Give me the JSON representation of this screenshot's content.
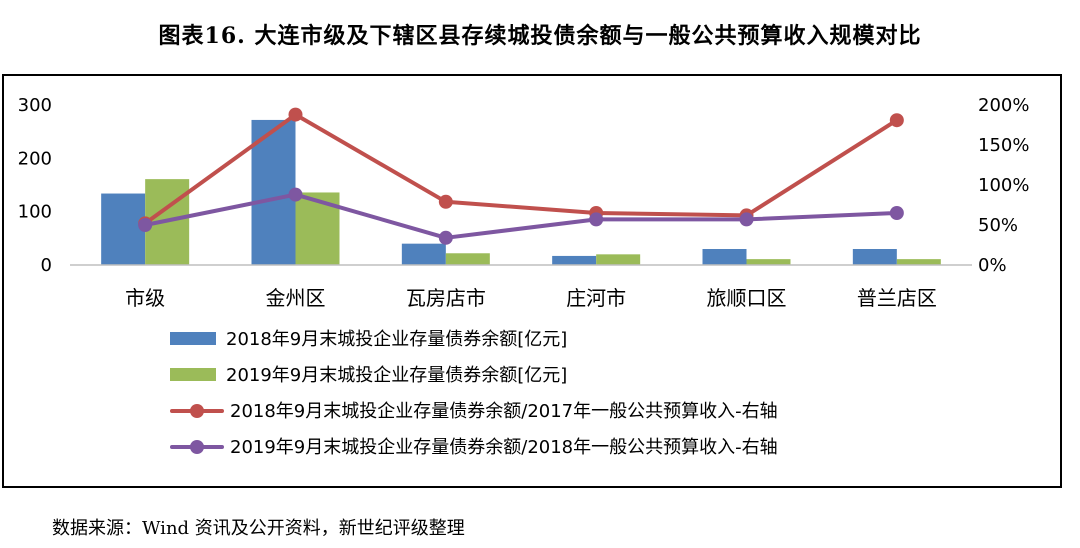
{
  "title": "图表16. 大连市级及下辖区县存续城投债余额与一般公共预算收入规模对比",
  "source": "数据来源：Wind 资讯及公开资料，新世纪评级整理",
  "chart_data": {
    "type": "bar",
    "categories": [
      "市级",
      "金州区",
      "瓦房店市",
      "庄河市",
      "旅顺口区",
      "普兰店区"
    ],
    "y_left": {
      "ticks": [
        "0",
        "100",
        "200",
        "300"
      ],
      "ylim": [
        0,
        300
      ]
    },
    "y_right": {
      "ticks": [
        "0%",
        "50%",
        "100%",
        "150%",
        "200%"
      ],
      "ylim": [
        0,
        200
      ]
    },
    "series": [
      {
        "name": "2018年9月末城投企业存量债券余额[亿元]",
        "kind": "bar",
        "axis": "left",
        "color": "#4f81bd",
        "values": [
          134,
          272,
          40,
          17,
          30,
          30
        ]
      },
      {
        "name": "2019年9月末城投企业存量债券余额[亿元]",
        "kind": "bar",
        "axis": "left",
        "color": "#9bbb59",
        "values": [
          161,
          136,
          22,
          20,
          11,
          11
        ]
      },
      {
        "name": "2018年9月末城投企业存量债券余额/2017年一般公共预算收入-右轴",
        "kind": "line",
        "axis": "right",
        "color": "#c0504d",
        "values": [
          52,
          188,
          79,
          65,
          62,
          181
        ]
      },
      {
        "name": "2019年9月末城投企业存量债券余额/2018年一般公共预算收入-右轴",
        "kind": "line",
        "axis": "right",
        "color": "#7e57a1",
        "values": [
          50,
          88,
          34,
          57,
          57,
          65
        ]
      }
    ],
    "grid": false,
    "legend_position": "bottom"
  }
}
